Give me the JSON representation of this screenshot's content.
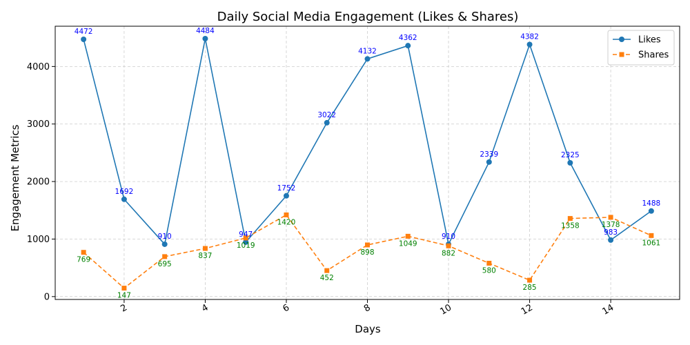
{
  "chart_data": {
    "type": "line",
    "title": "Daily Social Media Engagement (Likes & Shares)",
    "xlabel": "Days",
    "ylabel": "Engagement Metrics",
    "x": [
      1,
      2,
      3,
      4,
      5,
      6,
      7,
      8,
      9,
      10,
      11,
      12,
      13,
      14,
      15
    ],
    "xlim": [
      0.3,
      15.7
    ],
    "ylim": [
      -50,
      4700
    ],
    "xticks": [
      2,
      4,
      6,
      8,
      10,
      12,
      14
    ],
    "yticks": [
      0,
      1000,
      2000,
      3000,
      4000
    ],
    "x_tick_rotation": 30,
    "grid": true,
    "legend_position": "top-right",
    "series": [
      {
        "name": "Likes",
        "color": "#1f77b4",
        "label_color": "#0000ff",
        "line_style": "solid",
        "marker": "circle",
        "label_position": "above",
        "values": [
          4472,
          1692,
          910,
          4484,
          947,
          1752,
          3022,
          4132,
          4362,
          910,
          2339,
          4382,
          2325,
          983,
          1488
        ]
      },
      {
        "name": "Shares",
        "color": "#ff7f0e",
        "label_color": "#008000",
        "line_style": "dashed",
        "marker": "square",
        "label_position": "below",
        "values": [
          769,
          147,
          695,
          837,
          1019,
          1420,
          452,
          898,
          1049,
          882,
          580,
          285,
          1358,
          1378,
          1061
        ]
      }
    ]
  }
}
